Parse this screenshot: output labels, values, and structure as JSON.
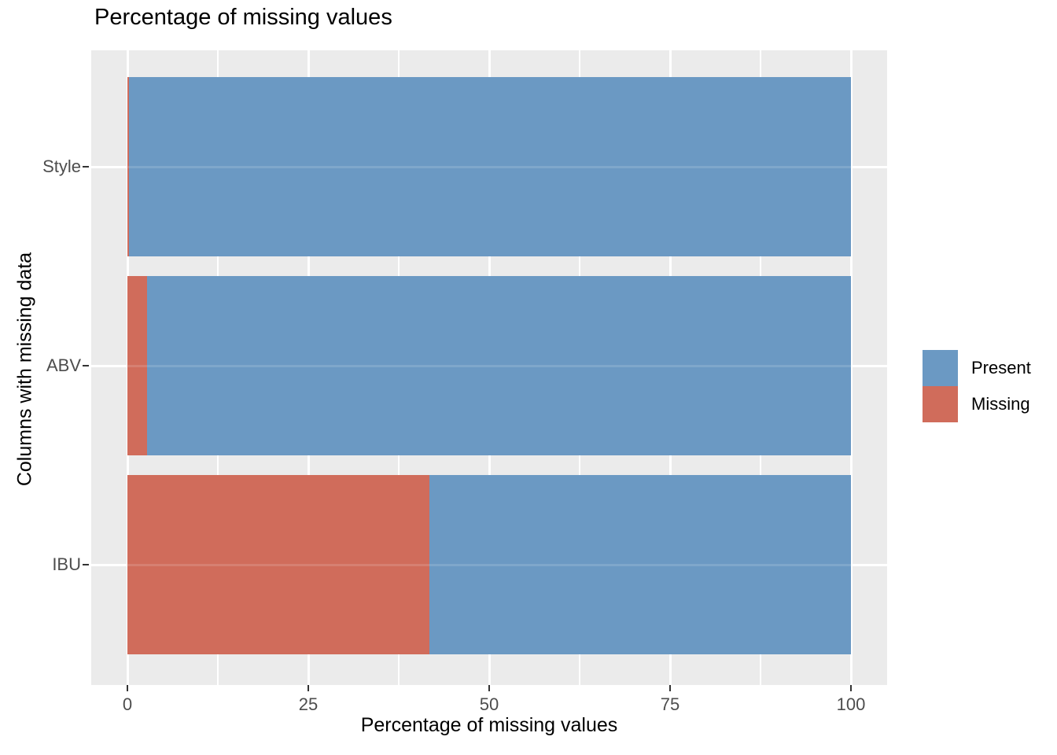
{
  "title": "Percentage of missing values",
  "chart_data": {
    "type": "bar",
    "orientation": "horizontal",
    "stacked": true,
    "normalized_to_100": true,
    "title": "Percentage of missing values",
    "xlabel": "Percentage of missing values",
    "ylabel": "Columns with missing data",
    "categories": [
      "Style",
      "ABV",
      "IBU"
    ],
    "series": [
      {
        "name": "Missing",
        "color": "#D06C5B",
        "values": [
          0.2,
          2.7,
          41.7
        ]
      },
      {
        "name": "Present",
        "color": "#6B99C3",
        "values": [
          99.8,
          97.3,
          58.3
        ]
      }
    ],
    "xlim": [
      0,
      100
    ],
    "x_ticks": [
      "0",
      "25",
      "50",
      "75",
      "100"
    ],
    "x_tick_values": [
      0,
      25,
      50,
      75,
      100
    ],
    "grid": "major and minor vertical white gridlines, horizontal major at category centers",
    "legend": {
      "position": "right",
      "entries": [
        {
          "label": "Present",
          "color": "#6B99C3"
        },
        {
          "label": "Missing",
          "color": "#D06C5B"
        }
      ]
    }
  },
  "colors": {
    "panel_background": "#EBEBEB",
    "gridline": "#FFFFFF",
    "tick_label": "#4D4D4D",
    "tick_mark": "#333333",
    "text": "#000000",
    "present": "#6B99C3",
    "missing": "#D06C5B"
  }
}
